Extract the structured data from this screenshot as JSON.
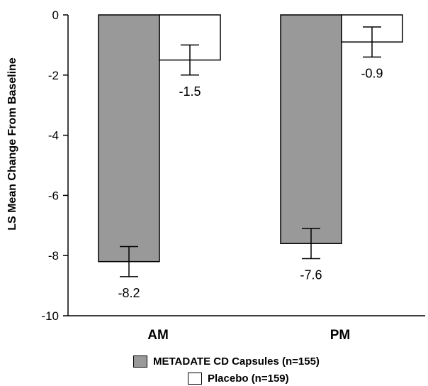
{
  "chart_data": {
    "type": "bar",
    "categories": [
      "AM",
      "PM"
    ],
    "ylabel": "LS Mean Change From Baseline",
    "ylim": [
      -10,
      0
    ],
    "yticks": [
      0,
      -2,
      -4,
      -6,
      -8,
      -10
    ],
    "grid": false,
    "series": [
      {
        "name": "METADATE CD Capsules (n=155)",
        "color": "#999999",
        "values": [
          -8.2,
          -7.6
        ],
        "error": [
          0.5,
          0.5
        ],
        "labels": [
          "-8.2",
          "-7.6"
        ]
      },
      {
        "name": "Placebo (n=159)",
        "color": "#ffffff",
        "values": [
          -1.5,
          -0.9
        ],
        "error": [
          0.5,
          0.5
        ],
        "labels": [
          "-1.5",
          "-0.9"
        ]
      }
    ],
    "legend_position": "bottom"
  }
}
